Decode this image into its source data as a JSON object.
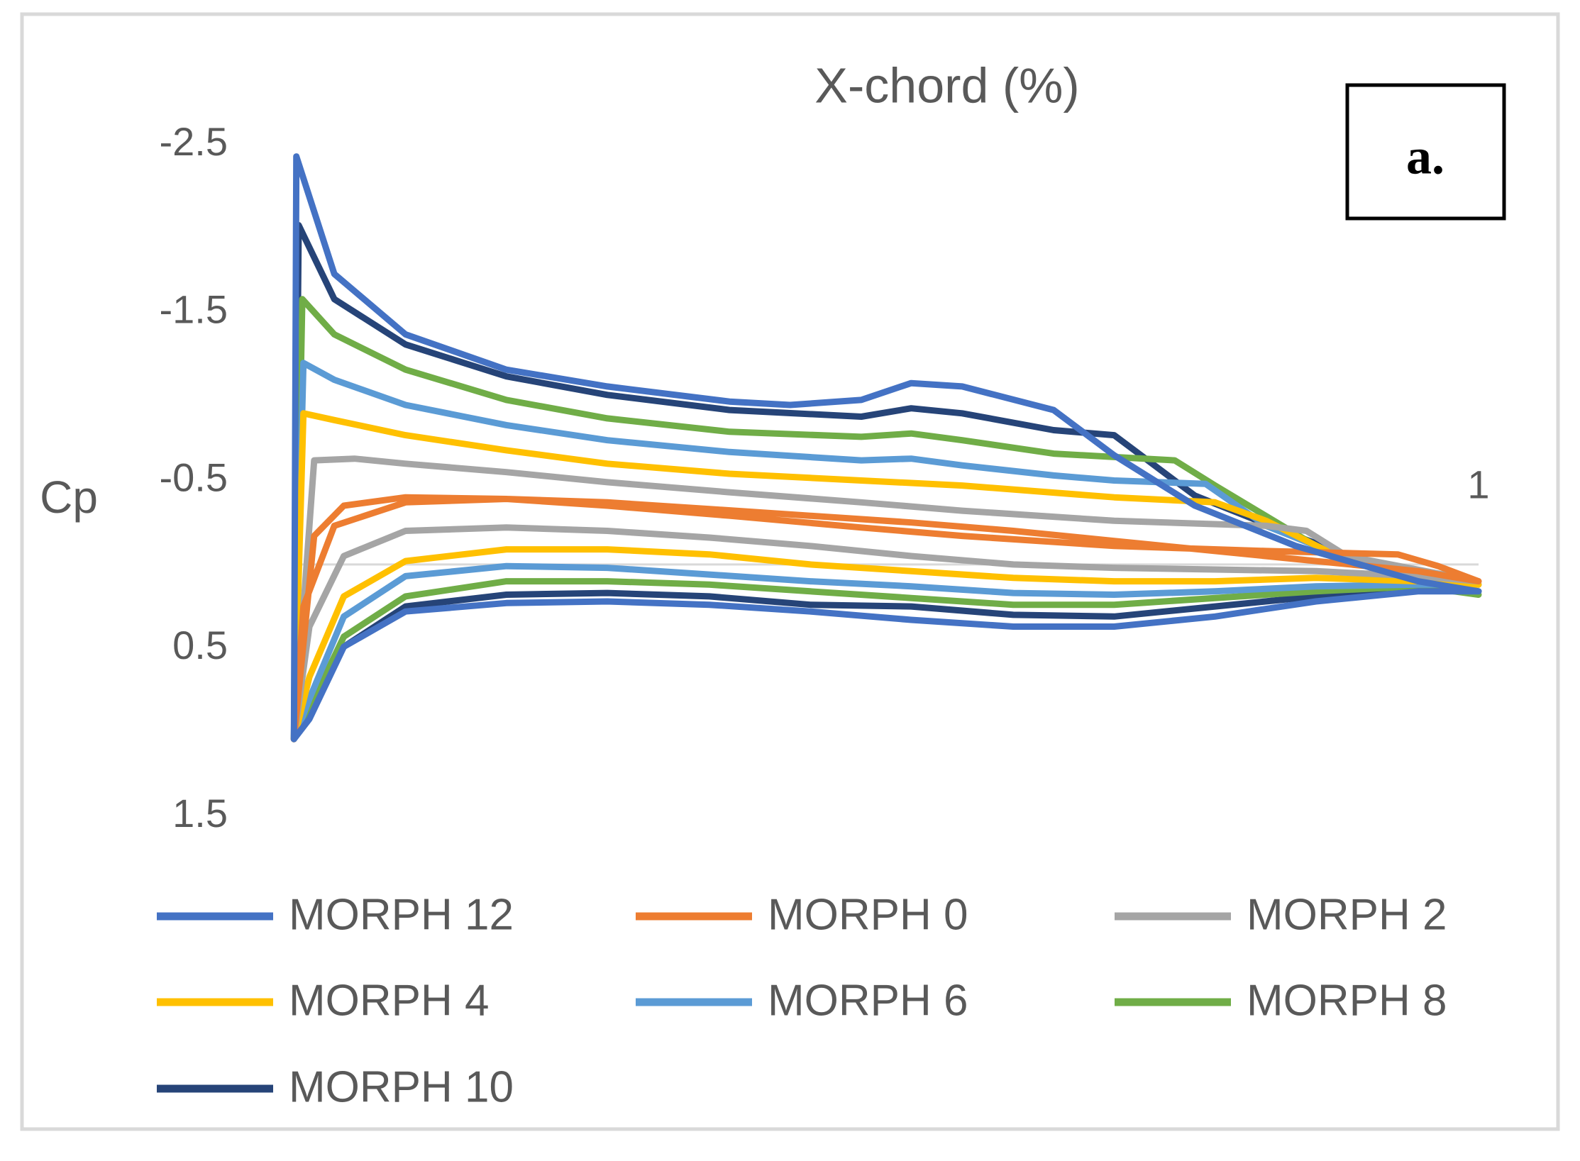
{
  "chart_data": {
    "type": "line",
    "title": "X-chord (%)",
    "y_label": "Cp",
    "annotation": "a.",
    "xlim": [
      0,
      1
    ],
    "xticks": [
      1
    ],
    "ylim": [
      -2.5,
      1.5
    ],
    "y_reversed": true,
    "yticks": [
      -2.5,
      -1.5,
      -0.5,
      0.5,
      1.5
    ],
    "legend": "bottom",
    "series": [
      {
        "name": "MORPH 12",
        "color": "#4472c4",
        "x": [
          0.002,
          0.004,
          0.036,
          0.096,
          0.181,
          0.266,
          0.369,
          0.42,
          0.48,
          0.522,
          0.565,
          0.642,
          0.693,
          0.761,
          0.846,
          0.949,
          1,
          0.949,
          0.863,
          0.778,
          0.693,
          0.608,
          0.522,
          0.437,
          0.352,
          0.266,
          0.181,
          0.096,
          0.044,
          0.015,
          0.002
        ],
        "values": [
          1.04,
          -2.43,
          -1.73,
          -1.37,
          -1.16,
          -1.06,
          -0.97,
          -0.95,
          -0.98,
          -1.08,
          -1.06,
          -0.92,
          -0.65,
          -0.35,
          -0.11,
          0.1,
          0.16,
          0.16,
          0.22,
          0.31,
          0.37,
          0.37,
          0.33,
          0.28,
          0.24,
          0.22,
          0.23,
          0.28,
          0.49,
          0.92,
          1.04
        ]
      },
      {
        "name": "MORPH 0",
        "color": "#ed7d31",
        "x": [
          0.002,
          0.019,
          0.044,
          0.096,
          0.181,
          0.266,
          0.369,
          0.48,
          0.565,
          0.693,
          0.821,
          0.932,
          0.966,
          1,
          0.949,
          0.863,
          0.778,
          0.693,
          0.608,
          0.522,
          0.437,
          0.352,
          0.266,
          0.181,
          0.096,
          0.036,
          0.01,
          0.002
        ],
        "values": [
          1.04,
          -0.17,
          -0.35,
          -0.4,
          -0.39,
          -0.35,
          -0.29,
          -0.22,
          -0.17,
          -0.11,
          -0.08,
          -0.06,
          0.01,
          0.1,
          0.04,
          -0.02,
          -0.08,
          -0.14,
          -0.2,
          -0.25,
          -0.29,
          -0.33,
          -0.37,
          -0.39,
          -0.37,
          -0.23,
          0.25,
          1.04
        ]
      },
      {
        "name": "MORPH 2",
        "color": "#a5a5a5",
        "x": [
          0.002,
          0.019,
          0.053,
          0.096,
          0.181,
          0.266,
          0.369,
          0.48,
          0.565,
          0.693,
          0.821,
          0.855,
          0.889,
          1,
          0.949,
          0.863,
          0.778,
          0.693,
          0.608,
          0.522,
          0.437,
          0.352,
          0.266,
          0.181,
          0.096,
          0.044,
          0.015,
          0.002
        ],
        "values": [
          1.04,
          -0.62,
          -0.63,
          -0.6,
          -0.55,
          -0.49,
          -0.43,
          -0.37,
          -0.32,
          -0.26,
          -0.23,
          -0.2,
          -0.05,
          0.1,
          0.07,
          0.04,
          0.03,
          0.02,
          0.0,
          -0.05,
          -0.11,
          -0.16,
          -0.2,
          -0.22,
          -0.2,
          -0.05,
          0.37,
          1.04
        ]
      },
      {
        "name": "MORPH 4",
        "color": "#ffc000",
        "x": [
          0.002,
          0.01,
          0.036,
          0.096,
          0.181,
          0.266,
          0.369,
          0.48,
          0.565,
          0.693,
          0.778,
          0.821,
          0.881,
          1,
          0.949,
          0.863,
          0.778,
          0.693,
          0.608,
          0.522,
          0.437,
          0.352,
          0.266,
          0.181,
          0.096,
          0.044,
          0.015,
          0.002
        ],
        "values": [
          1.04,
          -0.9,
          -0.86,
          -0.77,
          -0.68,
          -0.6,
          -0.54,
          -0.5,
          -0.47,
          -0.4,
          -0.37,
          -0.26,
          -0.05,
          0.12,
          0.1,
          0.08,
          0.1,
          0.1,
          0.08,
          0.04,
          0.0,
          -0.06,
          -0.09,
          -0.09,
          -0.02,
          0.19,
          0.67,
          1.04
        ]
      },
      {
        "name": "MORPH 6",
        "color": "#5b9bd5",
        "x": [
          0.002,
          0.01,
          0.036,
          0.096,
          0.181,
          0.266,
          0.369,
          0.48,
          0.522,
          0.565,
          0.642,
          0.693,
          0.77,
          0.821,
          0.906,
          1,
          0.949,
          0.863,
          0.778,
          0.693,
          0.608,
          0.522,
          0.437,
          0.352,
          0.266,
          0.181,
          0.096,
          0.044,
          0.015,
          0.002
        ],
        "values": [
          1.04,
          -1.2,
          -1.1,
          -0.95,
          -0.83,
          -0.74,
          -0.67,
          -0.62,
          -0.63,
          -0.59,
          -0.53,
          -0.5,
          -0.48,
          -0.23,
          0.01,
          0.12,
          0.12,
          0.13,
          0.16,
          0.18,
          0.17,
          0.13,
          0.1,
          0.06,
          0.02,
          0.01,
          0.07,
          0.31,
          0.8,
          1.04
        ]
      },
      {
        "name": "MORPH 8",
        "color": "#70ad47",
        "x": [
          0.002,
          0.009,
          0.036,
          0.096,
          0.181,
          0.266,
          0.369,
          0.48,
          0.522,
          0.565,
          0.642,
          0.693,
          0.744,
          0.778,
          0.863,
          0.949,
          1,
          0.949,
          0.863,
          0.778,
          0.693,
          0.608,
          0.522,
          0.437,
          0.352,
          0.266,
          0.181,
          0.096,
          0.044,
          0.015,
          0.002
        ],
        "values": [
          1.04,
          -1.58,
          -1.37,
          -1.16,
          -0.98,
          -0.87,
          -0.79,
          -0.76,
          -0.78,
          -0.74,
          -0.66,
          -0.64,
          -0.62,
          -0.47,
          -0.11,
          0.12,
          0.18,
          0.13,
          0.16,
          0.2,
          0.24,
          0.24,
          0.2,
          0.16,
          0.12,
          0.1,
          0.1,
          0.19,
          0.43,
          0.86,
          1.04
        ]
      },
      {
        "name": "MORPH 10",
        "color": "#264478",
        "x": [
          0.002,
          0.006,
          0.036,
          0.096,
          0.181,
          0.266,
          0.369,
          0.48,
          0.522,
          0.565,
          0.642,
          0.693,
          0.761,
          0.846,
          0.949,
          1,
          0.949,
          0.863,
          0.778,
          0.693,
          0.608,
          0.522,
          0.437,
          0.352,
          0.266,
          0.181,
          0.096,
          0.044,
          0.015,
          0.002
        ],
        "values": [
          1.04,
          -2.02,
          -1.58,
          -1.31,
          -1.12,
          -1.01,
          -0.92,
          -0.88,
          -0.93,
          -0.9,
          -0.8,
          -0.77,
          -0.41,
          -0.17,
          0.1,
          0.16,
          0.15,
          0.19,
          0.25,
          0.31,
          0.3,
          0.25,
          0.24,
          0.19,
          0.17,
          0.18,
          0.25,
          0.49,
          0.86,
          1.04
        ]
      }
    ]
  }
}
